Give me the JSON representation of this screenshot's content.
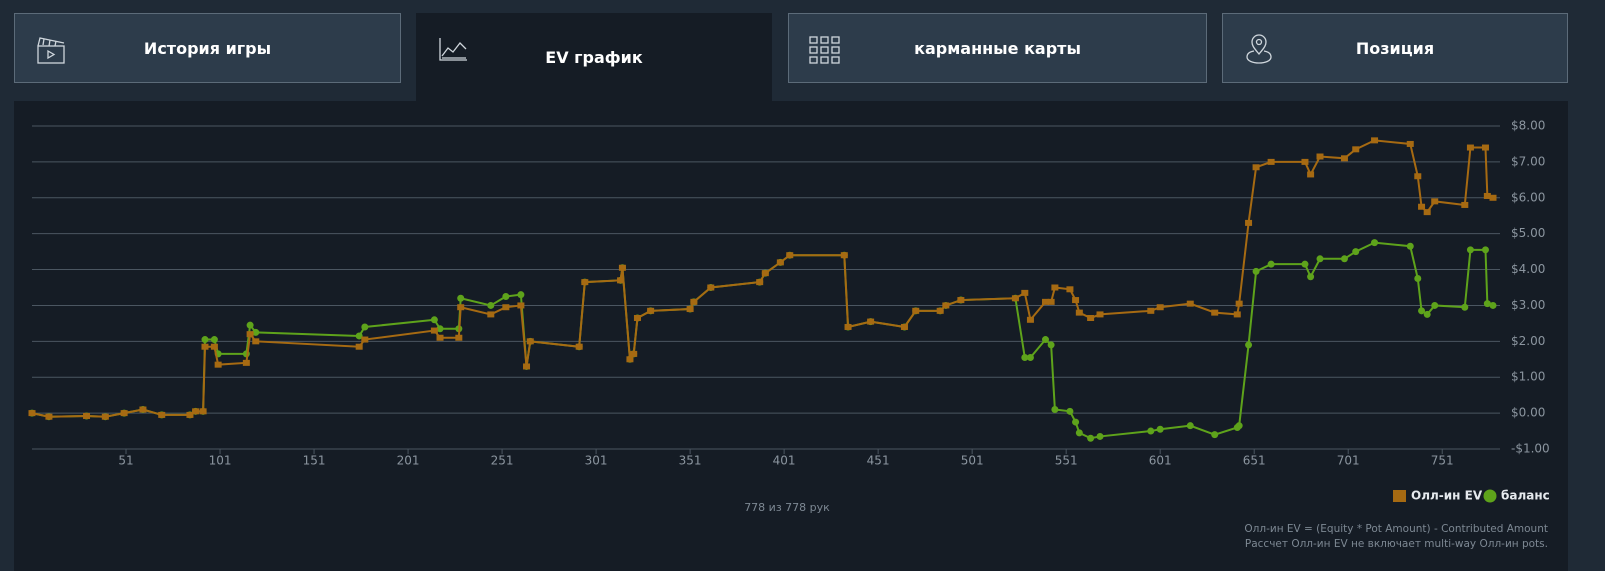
{
  "tabs": [
    {
      "label": "История игры"
    },
    {
      "label": "EV график"
    },
    {
      "label": "карманные карты"
    },
    {
      "label": "Позиция"
    }
  ],
  "active_tab": 1,
  "chart_data": {
    "type": "line",
    "x": [
      1,
      10,
      30,
      40,
      50,
      60,
      70,
      85,
      88,
      92,
      93,
      98,
      100,
      115,
      117,
      120,
      175,
      178,
      215,
      218,
      228,
      229,
      245,
      253,
      261,
      264,
      266,
      292,
      295,
      314,
      315,
      319,
      321,
      323,
      330,
      351,
      353,
      362,
      388,
      391,
      399,
      404,
      433,
      435,
      447,
      465,
      471,
      484,
      487,
      495,
      524,
      529,
      532,
      540,
      543,
      545,
      553,
      556,
      558,
      564,
      569,
      596,
      601,
      617,
      630,
      642,
      643,
      648,
      652,
      660,
      678,
      681,
      686,
      699,
      705,
      715,
      734,
      738,
      740,
      743,
      747,
      763,
      766,
      774,
      775,
      778
    ],
    "series": [
      {
        "name": "Олл-ин EV",
        "color": "#a66a12",
        "marker": "square",
        "values": [
          0,
          -0.1,
          -0.08,
          -0.1,
          0,
          0.1,
          -0.05,
          -0.05,
          0.05,
          0.05,
          1.85,
          1.85,
          1.35,
          1.4,
          2.2,
          2.0,
          1.85,
          2.05,
          2.3,
          2.1,
          2.1,
          2.95,
          2.75,
          2.95,
          3.0,
          1.3,
          2.0,
          1.85,
          3.65,
          3.7,
          4.05,
          1.5,
          1.65,
          2.65,
          2.85,
          2.9,
          3.1,
          3.5,
          3.65,
          3.9,
          4.2,
          4.4,
          4.4,
          2.4,
          2.55,
          2.4,
          2.85,
          2.85,
          3.0,
          3.15,
          3.2,
          3.35,
          2.6,
          3.1,
          3.1,
          3.5,
          3.45,
          3.15,
          2.8,
          2.65,
          2.75,
          2.85,
          2.95,
          3.05,
          2.8,
          2.75,
          3.05,
          5.3,
          6.85,
          7.0,
          7.0,
          6.65,
          7.15,
          7.1,
          7.35,
          7.6,
          7.5,
          6.6,
          5.75,
          5.6,
          5.9,
          5.8,
          7.4,
          7.4,
          6.05,
          6.0
        ]
      },
      {
        "name": "баланс",
        "color": "#5ea31b",
        "marker": "circle",
        "values": [
          0,
          -0.1,
          -0.08,
          -0.1,
          0,
          0.1,
          -0.05,
          -0.05,
          0.05,
          0.05,
          2.05,
          2.05,
          1.65,
          1.65,
          2.45,
          2.25,
          2.15,
          2.4,
          2.6,
          2.35,
          2.35,
          3.2,
          3.0,
          3.25,
          3.3,
          1.3,
          2.0,
          1.85,
          3.65,
          3.7,
          4.05,
          1.5,
          1.65,
          2.65,
          2.85,
          2.9,
          3.1,
          3.5,
          3.65,
          3.9,
          4.2,
          4.4,
          4.4,
          2.4,
          2.55,
          2.4,
          2.85,
          2.85,
          3.0,
          3.15,
          3.2,
          1.55,
          1.55,
          2.05,
          1.9,
          0.1,
          0.05,
          -0.25,
          -0.55,
          -0.7,
          -0.65,
          -0.5,
          -0.45,
          -0.35,
          -0.6,
          -0.4,
          -0.35,
          1.9,
          3.95,
          4.15,
          4.15,
          3.8,
          4.3,
          4.3,
          4.5,
          4.75,
          4.65,
          3.75,
          2.85,
          2.75,
          3.0,
          2.95,
          4.55,
          4.55,
          3.05,
          3.0
        ]
      }
    ],
    "xlim": [
      1,
      778
    ],
    "xticks": [
      51,
      101,
      151,
      201,
      251,
      301,
      351,
      401,
      451,
      501,
      551,
      601,
      651,
      701,
      751
    ],
    "ylim": [
      -1,
      8
    ],
    "yticks": [
      {
        "value": -1,
        "label": "-$1.00"
      },
      {
        "value": 0,
        "label": "$0.00"
      },
      {
        "value": 1,
        "label": "$1.00"
      },
      {
        "value": 2,
        "label": "$2.00"
      },
      {
        "value": 3,
        "label": "$3.00"
      },
      {
        "value": 4,
        "label": "$4.00"
      },
      {
        "value": 5,
        "label": "$5.00"
      },
      {
        "value": 6,
        "label": "$6.00"
      },
      {
        "value": 7,
        "label": "$7.00"
      },
      {
        "value": 8,
        "label": "$8.00"
      }
    ],
    "grid": true
  },
  "hands_count": "778 из 778 рук",
  "footnotes": [
    "Олл-ин EV = (Equity * Pot Amount) - Contributed Amount",
    "Рассчет Олл-ин EV не включает multi-way Олл-ин pots."
  ]
}
